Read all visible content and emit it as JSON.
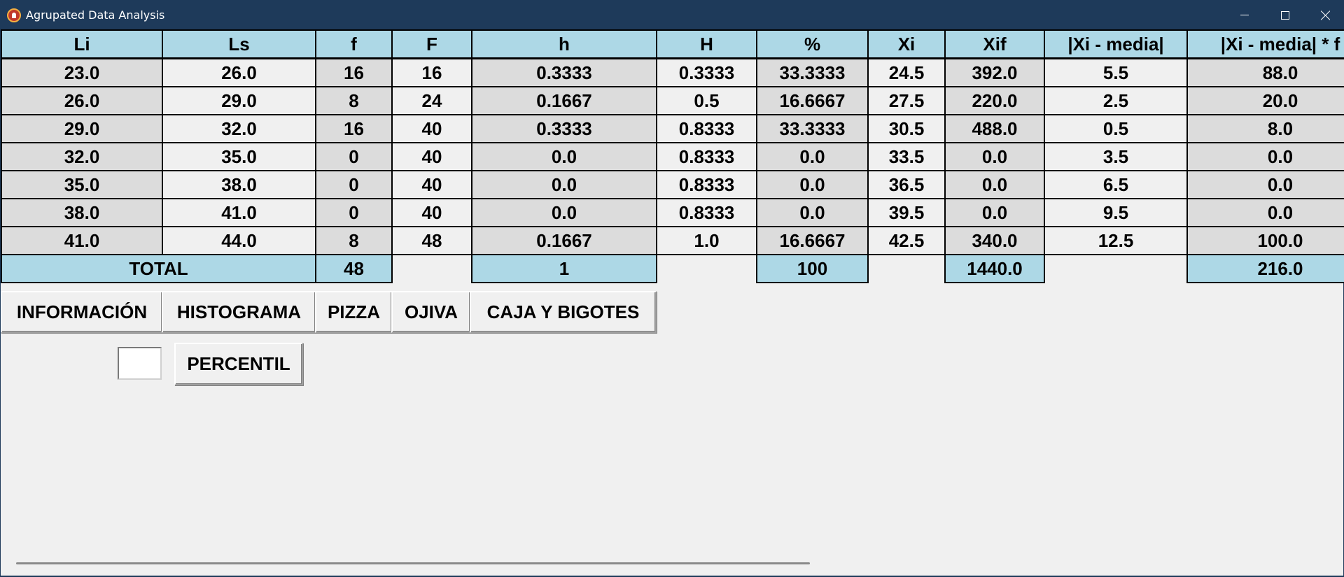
{
  "window": {
    "title": "Agrupated Data Analysis"
  },
  "table": {
    "headers": [
      "Li",
      "Ls",
      "f",
      "F",
      "h",
      "H",
      "%",
      "Xi",
      "Xif",
      "|Xi - media|",
      "|Xi - media| * f"
    ],
    "rows": [
      [
        "23.0",
        "26.0",
        "16",
        "16",
        "0.3333",
        "0.3333",
        "33.3333",
        "24.5",
        "392.0",
        "5.5",
        "88.0"
      ],
      [
        "26.0",
        "29.0",
        "8",
        "24",
        "0.1667",
        "0.5",
        "16.6667",
        "27.5",
        "220.0",
        "2.5",
        "20.0"
      ],
      [
        "29.0",
        "32.0",
        "16",
        "40",
        "0.3333",
        "0.8333",
        "33.3333",
        "30.5",
        "488.0",
        "0.5",
        "8.0"
      ],
      [
        "32.0",
        "35.0",
        "0",
        "40",
        "0.0",
        "0.8333",
        "0.0",
        "33.5",
        "0.0",
        "3.5",
        "0.0"
      ],
      [
        "35.0",
        "38.0",
        "0",
        "40",
        "0.0",
        "0.8333",
        "0.0",
        "36.5",
        "0.0",
        "6.5",
        "0.0"
      ],
      [
        "38.0",
        "41.0",
        "0",
        "40",
        "0.0",
        "0.8333",
        "0.0",
        "39.5",
        "0.0",
        "9.5",
        "0.0"
      ],
      [
        "41.0",
        "44.0",
        "8",
        "48",
        "0.1667",
        "1.0",
        "16.6667",
        "42.5",
        "340.0",
        "12.5",
        "100.0"
      ]
    ],
    "totals": {
      "label": "TOTAL",
      "f": "48",
      "h": "1",
      "percent": "100",
      "xif": "1440.0",
      "abs_dev_f": "216.0"
    }
  },
  "buttons": {
    "informacion": "INFORMACIÓN",
    "histograma": "HISTOGRAMA",
    "pizza": "PIZZA",
    "ojiva": "OJIVA",
    "caja": "CAJA Y BIGOTES",
    "percentil": "PERCENTIL"
  },
  "percentil_input": {
    "value": ""
  },
  "colors": {
    "header_bg": "#add8e6",
    "row_dark": "#dcdcdc",
    "row_light": "#f0f0f0",
    "titlebar": "#1e3a5a"
  }
}
